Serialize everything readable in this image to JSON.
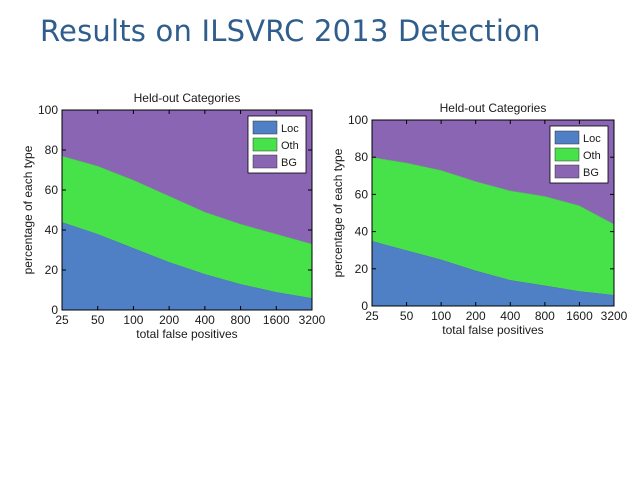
{
  "slide": {
    "title": "Results on ILSVRC 2013 Detection"
  },
  "chart_data": [
    {
      "type": "area",
      "stacked": true,
      "title": "Held-out Categories",
      "xlabel": "total false positives",
      "ylabel": "percentage of each type",
      "categories": [
        "25",
        "50",
        "100",
        "200",
        "400",
        "800",
        "1600",
        "3200"
      ],
      "ylim": [
        0,
        100
      ],
      "yticks": [
        "0",
        "20",
        "40",
        "60",
        "80",
        "100"
      ],
      "legend_position": "top-right",
      "series": [
        {
          "name": "Loc",
          "color": "#4f7fc4",
          "values": [
            44,
            38,
            31,
            24,
            18,
            13,
            9,
            6
          ]
        },
        {
          "name": "Oth",
          "color": "#47e24a",
          "values": [
            33,
            34,
            34,
            33,
            31,
            30,
            29,
            27
          ]
        },
        {
          "name": "BG",
          "color": "#8a65b3",
          "values": [
            23,
            28,
            35,
            43,
            51,
            57,
            62,
            67
          ]
        }
      ]
    },
    {
      "type": "area",
      "stacked": true,
      "title": "Held-out Categories",
      "xlabel": "total false positives",
      "ylabel": "percentage of each type",
      "categories": [
        "25",
        "50",
        "100",
        "200",
        "400",
        "800",
        "1600",
        "3200"
      ],
      "ylim": [
        0,
        100
      ],
      "yticks": [
        "0",
        "20",
        "40",
        "60",
        "80",
        "100"
      ],
      "legend_position": "top-right",
      "series": [
        {
          "name": "Loc",
          "color": "#4f7fc4",
          "values": [
            35,
            30,
            25,
            19,
            14,
            11,
            8,
            6
          ]
        },
        {
          "name": "Oth",
          "color": "#47e24a",
          "values": [
            45,
            47,
            48,
            48,
            48,
            48,
            46,
            38
          ]
        },
        {
          "name": "BG",
          "color": "#8a65b3",
          "values": [
            20,
            23,
            27,
            33,
            38,
            41,
            46,
            56
          ]
        }
      ]
    }
  ]
}
